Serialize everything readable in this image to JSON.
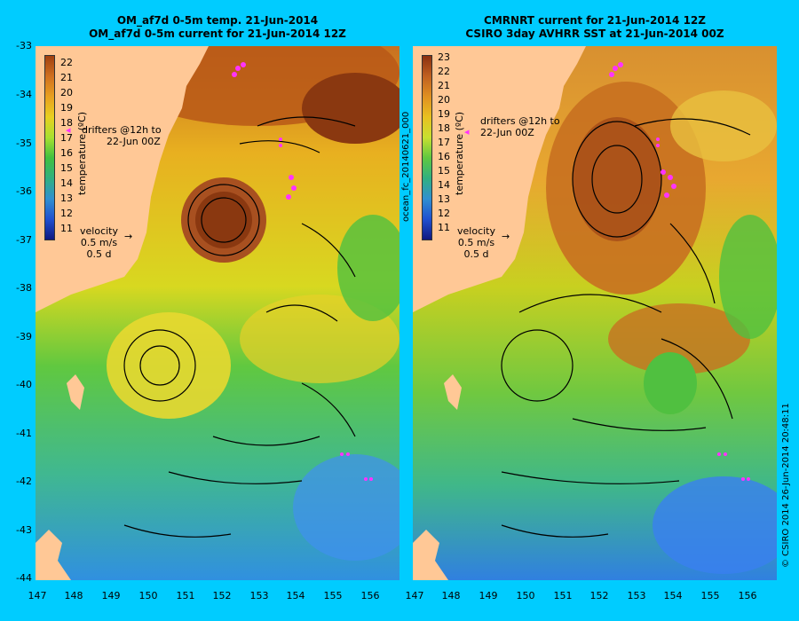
{
  "left_panel": {
    "title_line1": "OM_af7d 0-5m temp. 21-Jun-2014",
    "title_line2": "OM_af7d 0-5m current for 21-Jun-2014 12Z",
    "colorbar_label": "temperature (ºC)",
    "colorbar_ticks": [
      "22",
      "21",
      "20",
      "19",
      "18",
      "17",
      "16",
      "15",
      "14",
      "13",
      "12",
      "11"
    ],
    "drifters_text": [
      "drifters @12h to",
      "22-Jun 00Z"
    ],
    "velocity_text": [
      "velocity",
      "0.5 m/s",
      "0.5 d"
    ]
  },
  "right_panel": {
    "title_line1": "CMRNRT current for 21-Jun-2014 12Z",
    "title_line2": "CSIRO 3day AVHRR SST at 21-Jun-2014 00Z",
    "colorbar_label": "temperature (ºC)",
    "colorbar_ticks": [
      "23",
      "22",
      "21",
      "20",
      "19",
      "18",
      "17",
      "16",
      "15",
      "14",
      "13",
      "12",
      "11"
    ],
    "drifters_text": [
      "drifters @12h to",
      "22-Jun 00Z"
    ],
    "velocity_text": [
      "velocity",
      "0.5 m/s",
      "0.5 d"
    ]
  },
  "side_label": "ocean_fc_20140621_000",
  "credit": "© CSIRO 2014   26-Jun-2014 20:48:11",
  "axes": {
    "y_ticks": [
      "-33",
      "-34",
      "-35",
      "-36",
      "-37",
      "-38",
      "-39",
      "-40",
      "-41",
      "-42",
      "-43",
      "-44"
    ],
    "x_ticks": [
      "147",
      "148",
      "149",
      "150",
      "151",
      "152",
      "153",
      "154",
      "155",
      "156"
    ]
  },
  "colors": {
    "background": "#00ccff",
    "land": "#ffc896",
    "drifters": "#ff33ff"
  }
}
